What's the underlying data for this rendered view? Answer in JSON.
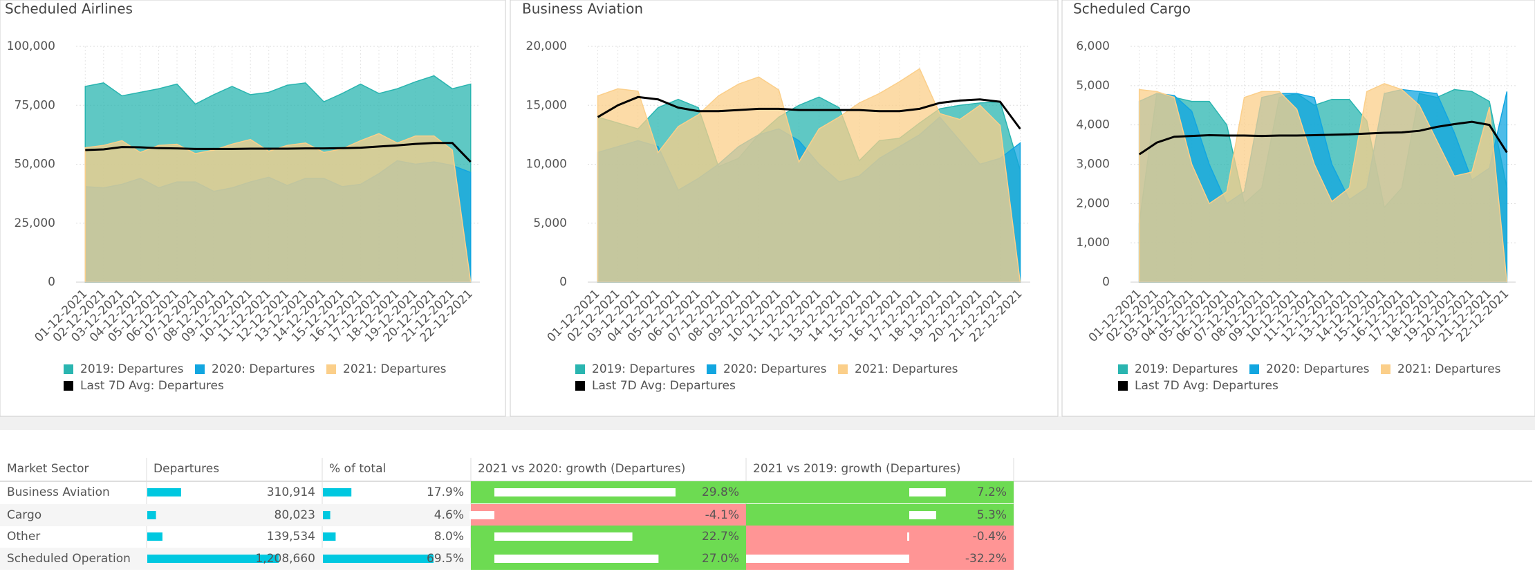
{
  "chart_data": [
    {
      "type": "area",
      "title": "Scheduled Airlines",
      "categories": [
        "01-12-2021",
        "02-12-2021",
        "03-12-2021",
        "04-12-2021",
        "05-12-2021",
        "06-12-2021",
        "07-12-2021",
        "08-12-2021",
        "09-12-2021",
        "10-12-2021",
        "11-12-2021",
        "12-12-2021",
        "13-12-2021",
        "14-12-2021",
        "15-12-2021",
        "16-12-2021",
        "17-12-2021",
        "18-12-2021",
        "19-12-2021",
        "20-12-2021",
        "21-12-2021",
        "22-12-2021"
      ],
      "series": [
        {
          "name": "2019: Departures",
          "color": "#2ab5b0",
          "values": [
            83000,
            84500,
            79000,
            80500,
            82000,
            84000,
            75500,
            79500,
            83000,
            79500,
            80500,
            83500,
            84500,
            76500,
            80000,
            84000,
            80000,
            82000,
            85000,
            87500,
            82000,
            84000
          ]
        },
        {
          "name": "2020: Departures",
          "color": "#12a6e0",
          "values": [
            40500,
            40000,
            41500,
            44000,
            40000,
            42500,
            42500,
            38500,
            40000,
            42500,
            44500,
            41000,
            44000,
            44000,
            40500,
            41500,
            46000,
            51500,
            50000,
            51000,
            49500,
            46500
          ]
        },
        {
          "name": "2021: Departures",
          "color": "#fbcf8a",
          "values": [
            57000,
            58000,
            60000,
            55000,
            58000,
            58500,
            54500,
            56000,
            58500,
            60500,
            55500,
            58000,
            59000,
            55000,
            56500,
            60000,
            63000,
            59000,
            62000,
            62000,
            56000,
            0
          ]
        },
        {
          "name": "Last 7D Avg: Departures",
          "color": "#000000",
          "type": "line",
          "values": [
            56000,
            56300,
            57300,
            57200,
            56800,
            56700,
            56500,
            56500,
            56500,
            56600,
            56600,
            56600,
            56700,
            56700,
            56800,
            57000,
            57500,
            58000,
            58600,
            59000,
            59000,
            51000
          ]
        }
      ],
      "ylim": [
        0,
        100000
      ],
      "yticks": [
        0,
        {
          "value": 25000,
          "label": "25,000"
        },
        {
          "value": 50000,
          "label": "50,000"
        },
        {
          "value": 75000,
          "label": "75,000"
        },
        {
          "value": 100000,
          "label": "100,000"
        }
      ],
      "grid": true
    },
    {
      "type": "area",
      "title": "Business Aviation",
      "categories": [
        "01-12-2021",
        "02-12-2021",
        "03-12-2021",
        "04-12-2021",
        "05-12-2021",
        "06-12-2021",
        "07-12-2021",
        "08-12-2021",
        "09-12-2021",
        "10-12-2021",
        "11-12-2021",
        "12-12-2021",
        "13-12-2021",
        "14-12-2021",
        "15-12-2021",
        "16-12-2021",
        "17-12-2021",
        "18-12-2021",
        "19-12-2021",
        "20-12-2021",
        "21-12-2021",
        "22-12-2021"
      ],
      "series": [
        {
          "name": "2019: Departures",
          "color": "#2ab5b0",
          "values": [
            14000,
            13500,
            13000,
            14800,
            15500,
            14800,
            9800,
            10500,
            12500,
            14000,
            15000,
            15700,
            14800,
            10300,
            12000,
            12200,
            13500,
            14700,
            15000,
            15200,
            15300,
            9500
          ]
        },
        {
          "name": "2020: Departures",
          "color": "#12a6e0",
          "values": [
            11000,
            11500,
            12000,
            11500,
            7800,
            8800,
            10000,
            11500,
            12500,
            13000,
            12000,
            10000,
            8500,
            9000,
            10500,
            11500,
            12500,
            14000,
            12000,
            10000,
            10500,
            11800
          ]
        },
        {
          "name": "2021: Departures",
          "color": "#fbcf8a",
          "values": [
            15800,
            16400,
            16200,
            11000,
            13200,
            14200,
            15800,
            16800,
            17400,
            16300,
            10200,
            13000,
            14000,
            15200,
            16000,
            17000,
            18100,
            14300,
            13800,
            15000,
            13300,
            0
          ]
        },
        {
          "name": "Last 7D Avg: Departures",
          "color": "#000000",
          "type": "line",
          "values": [
            14000,
            15000,
            15700,
            15500,
            14800,
            14500,
            14500,
            14600,
            14700,
            14700,
            14600,
            14600,
            14600,
            14600,
            14500,
            14500,
            14700,
            15200,
            15400,
            15500,
            15300,
            13000
          ]
        }
      ],
      "ylim": [
        0,
        20000
      ],
      "yticks": [
        0,
        {
          "value": 5000,
          "label": "5,000"
        },
        {
          "value": 10000,
          "label": "10,000"
        },
        {
          "value": 15000,
          "label": "15,000"
        },
        {
          "value": 20000,
          "label": "20,000"
        }
      ],
      "grid": true
    },
    {
      "type": "area",
      "title": "Scheduled Cargo",
      "categories": [
        "01-12-2021",
        "02-12-2021",
        "03-12-2021",
        "04-12-2021",
        "05-12-2021",
        "06-12-2021",
        "07-12-2021",
        "08-12-2021",
        "09-12-2021",
        "10-12-2021",
        "11-12-2021",
        "12-12-2021",
        "13-12-2021",
        "14-12-2021",
        "15-12-2021",
        "16-12-2021",
        "17-12-2021",
        "18-12-2021",
        "19-12-2021",
        "20-12-2021",
        "21-12-2021",
        "22-12-2021"
      ],
      "series": [
        {
          "name": "2019: Departures",
          "color": "#2ab5b0",
          "values": [
            1500,
            4800,
            4700,
            4600,
            4600,
            4000,
            2000,
            2400,
            4700,
            4800,
            4500,
            4650,
            4650,
            4100,
            1900,
            2400,
            4800,
            4700,
            4900,
            4850,
            4600,
            2400
          ]
        },
        {
          "name": "2020: Departures",
          "color": "#12a6e0",
          "values": [
            4600,
            4800,
            4750,
            4350,
            3000,
            2000,
            2300,
            4700,
            4800,
            4800,
            4700,
            3000,
            2100,
            2400,
            4800,
            4900,
            4850,
            4800,
            3800,
            2600,
            2900,
            4850
          ]
        },
        {
          "name": "2021: Departures",
          "color": "#fbcf8a",
          "values": [
            4900,
            4850,
            4700,
            3000,
            2000,
            2300,
            4700,
            4850,
            4850,
            4400,
            3000,
            2050,
            2400,
            4850,
            5050,
            4900,
            4500,
            3600,
            2700,
            2800,
            4450,
            0
          ]
        },
        {
          "name": "Last 7D Avg: Departures",
          "color": "#000000",
          "type": "line",
          "values": [
            3250,
            3550,
            3700,
            3720,
            3740,
            3730,
            3730,
            3720,
            3730,
            3730,
            3740,
            3750,
            3760,
            3780,
            3800,
            3810,
            3850,
            3950,
            4020,
            4080,
            4000,
            3300
          ]
        }
      ],
      "ylim": [
        0,
        6000
      ],
      "yticks": [
        0,
        {
          "value": 1000,
          "label": "1,000"
        },
        {
          "value": 2000,
          "label": "2,000"
        },
        {
          "value": 3000,
          "label": "3,000"
        },
        {
          "value": 4000,
          "label": "4,000"
        },
        {
          "value": 5000,
          "label": "5,000"
        },
        {
          "value": 6000,
          "label": "6,000"
        }
      ],
      "grid": true
    }
  ],
  "table": {
    "columns": [
      "Market Sector",
      "Departures",
      "% of total",
      "2021 vs 2020: growth (Departures)",
      "2021 vs 2019: growth (Departures)"
    ],
    "bar_color": "#00c8e0",
    "positive_color": "#6ddb52",
    "negative_color": "#ff9595",
    "rows": [
      [
        "Business Aviation",
        {
          "value": 310914,
          "label": "310,914"
        },
        {
          "value": 17.9,
          "label": "17.9%"
        },
        {
          "value": 29.8,
          "label": "29.8%"
        },
        {
          "value": 7.2,
          "label": "7.2%"
        }
      ],
      [
        "Cargo",
        {
          "value": 80023,
          "label": "80,023"
        },
        {
          "value": 4.6,
          "label": "4.6%"
        },
        {
          "value": -4.1,
          "label": "-4.1%"
        },
        {
          "value": 5.3,
          "label": "5.3%"
        }
      ],
      [
        "Other",
        {
          "value": 139534,
          "label": "139,534"
        },
        {
          "value": 8.0,
          "label": "8.0%"
        },
        {
          "value": 22.7,
          "label": "22.7%"
        },
        {
          "value": -0.4,
          "label": "-0.4%"
        }
      ],
      [
        "Scheduled Operation",
        {
          "value": 1208660,
          "label": "1,208,660"
        },
        {
          "value": 69.5,
          "label": "69.5%"
        },
        {
          "value": 27.0,
          "label": "27.0%"
        },
        {
          "value": -32.2,
          "label": "-32.2%"
        }
      ]
    ]
  }
}
